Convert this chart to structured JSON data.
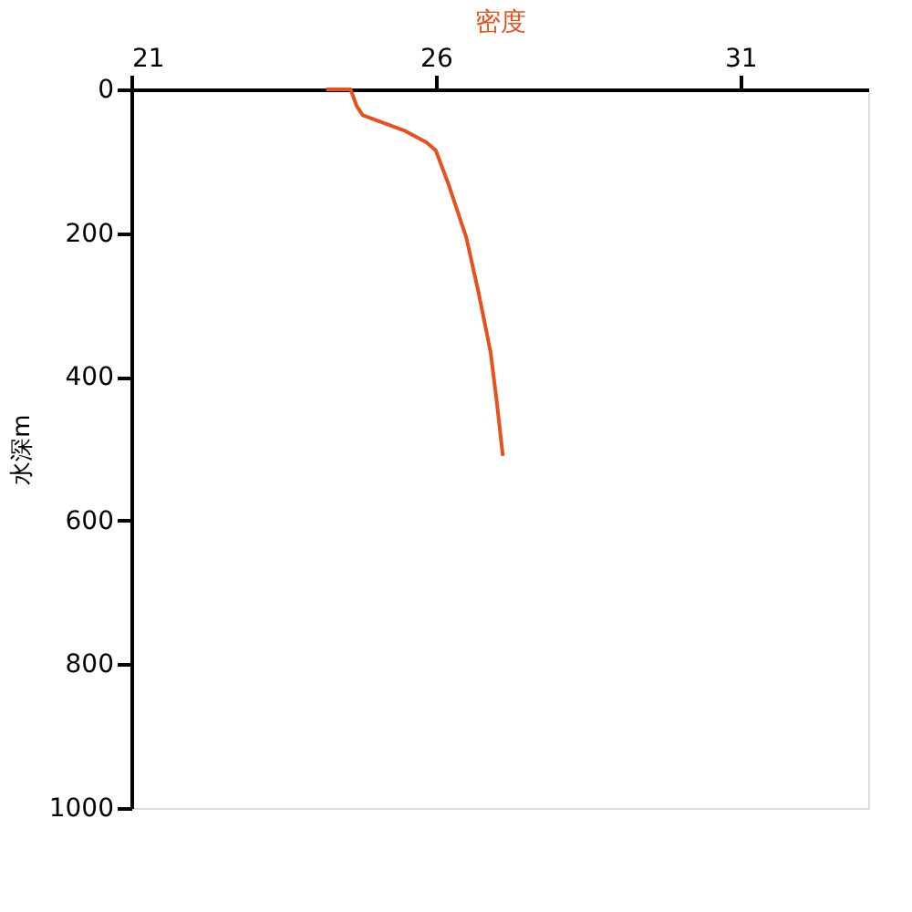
{
  "chart_data": {
    "type": "line",
    "xlabel": "密度",
    "ylabel": "水深m",
    "series": [
      {
        "color": "#e8501c",
        "x": [
          24.2,
          24.6,
          24.7,
          24.8,
          25.5,
          25.85,
          26.0,
          26.2,
          26.5,
          26.7,
          26.9,
          27.0,
          27.1
        ],
        "values": [
          0,
          0,
          23,
          36,
          58,
          74,
          85,
          130,
          206,
          282,
          366,
          434,
          510
        ]
      }
    ],
    "xlim": [
      21,
      33.1
    ],
    "xticks": [
      21,
      26,
      31
    ],
    "ylim": [
      1000,
      0
    ],
    "yticks": [
      0,
      200,
      400,
      600,
      800,
      1000
    ],
    "grid": false,
    "line_style": "solid"
  }
}
